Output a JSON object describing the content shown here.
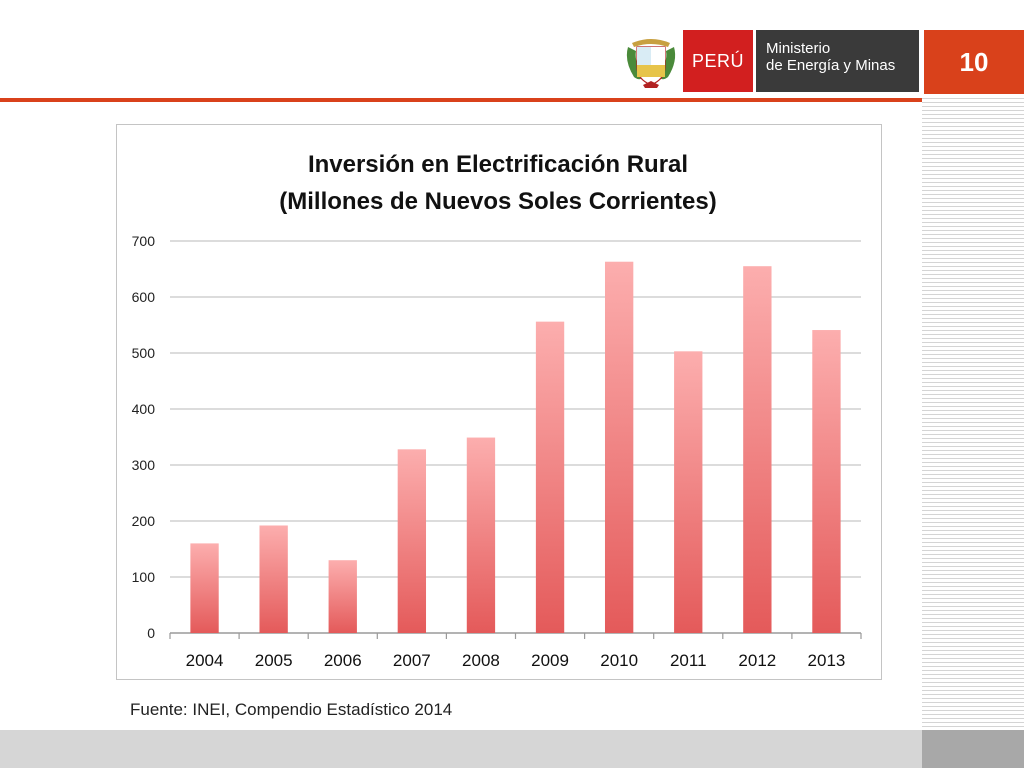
{
  "header": {
    "page_number": "10",
    "peru_label": "PERÚ",
    "ministry_line1": "Ministerio",
    "ministry_line2": "de Energía y Minas"
  },
  "colors": {
    "accent": "#d9411b",
    "peru_red": "#d21f1f",
    "ministry_dark": "#3a3a3a",
    "bar_top": "#fcaeae",
    "bar_bottom": "#e45a5a"
  },
  "chart_data": {
    "type": "bar",
    "title": "Inversión en Electrificación Rural",
    "subtitle": "(Millones de Nuevos Soles Corrientes)",
    "categories": [
      "2004",
      "2005",
      "2006",
      "2007",
      "2008",
      "2009",
      "2010",
      "2011",
      "2012",
      "2013"
    ],
    "values": [
      160,
      192,
      130,
      328,
      349,
      556,
      663,
      503,
      655,
      541
    ],
    "ylim": [
      0,
      700
    ],
    "yticks": [
      0,
      100,
      200,
      300,
      400,
      500,
      600,
      700
    ],
    "grid": true,
    "legend": "none"
  },
  "source": "Fuente: INEI, Compendio Estadístico 2014"
}
